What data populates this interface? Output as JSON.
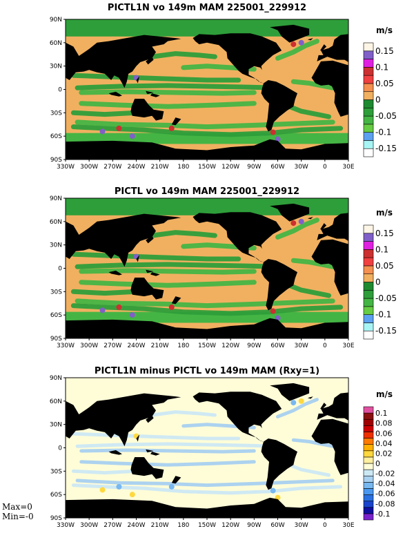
{
  "chart_data": [
    {
      "type": "heatmap",
      "title": "PICTL1N vo 149m MAM 225001_229912",
      "x_ticks": [
        "330W",
        "300W",
        "270W",
        "240W",
        "210W",
        "180",
        "150W",
        "120W",
        "90W",
        "60W",
        "30W",
        "0",
        "30E"
      ],
      "y_ticks": [
        "90N",
        "60N",
        "30N",
        "0",
        "30S",
        "60S",
        "90S"
      ],
      "colorbar": {
        "unit": "m/s",
        "levels": [
          "0.15",
          "0.1",
          "0.05",
          "0",
          "-0.05",
          "-0.1",
          "-0.15"
        ],
        "colors": [
          "#ffffff",
          "#a8f4f4",
          "#5ca0f0",
          "#66cc44",
          "#44b544",
          "#2e9e3a",
          "#1e8a30",
          "#f0b060",
          "#f49050",
          "#f04040",
          "#cc3030",
          "#e020e0",
          "#8060c8",
          "#fdf5e6"
        ]
      }
    },
    {
      "type": "heatmap",
      "title": "PICTL vo 149m MAM 225001_229912",
      "x_ticks": [
        "330W",
        "300W",
        "270W",
        "240W",
        "210W",
        "180",
        "150W",
        "120W",
        "90W",
        "60W",
        "30W",
        "0",
        "30E"
      ],
      "y_ticks": [
        "90N",
        "60N",
        "30N",
        "0",
        "30S",
        "60S",
        "90S"
      ],
      "colorbar": {
        "unit": "m/s",
        "levels": [
          "0.15",
          "0.1",
          "0.05",
          "0",
          "-0.05",
          "-0.1",
          "-0.15"
        ],
        "colors": [
          "#ffffff",
          "#a8f4f4",
          "#5ca0f0",
          "#66cc44",
          "#44b544",
          "#2e9e3a",
          "#1e8a30",
          "#f0b060",
          "#f49050",
          "#f04040",
          "#cc3030",
          "#e020e0",
          "#8060c8",
          "#fdf5e6"
        ]
      }
    },
    {
      "type": "heatmap",
      "title": "PICTL1N minus PICTL vo 149m MAM (Rxy=1)",
      "x_ticks": [
        "330W",
        "300W",
        "270W",
        "240W",
        "210W",
        "180",
        "150W",
        "120W",
        "90W",
        "60W",
        "30W",
        "0",
        "30E"
      ],
      "y_ticks": [
        "90N",
        "60N",
        "30N",
        "0",
        "30S",
        "60S",
        "90S"
      ],
      "colorbar": {
        "unit": "m/s",
        "levels": [
          "0.1",
          "0.08",
          "0.06",
          "0.04",
          "0.02",
          "0",
          "-0.02",
          "-0.04",
          "-0.06",
          "-0.08",
          "-0.1"
        ],
        "colors": [
          "#7a22cc",
          "#1010a0",
          "#1a44cc",
          "#2a70e0",
          "#4a98f0",
          "#78b8f0",
          "#a8d0f0",
          "#cce8f4",
          "#fffdd8",
          "#fff0a0",
          "#ffd840",
          "#ffb000",
          "#ff7a00",
          "#ee3000",
          "#cc0000",
          "#a00000",
          "#8a1010",
          "#e050a0"
        ]
      }
    }
  ],
  "annotations": {
    "max_text": "Max=0",
    "min_text": "Min=-0"
  }
}
